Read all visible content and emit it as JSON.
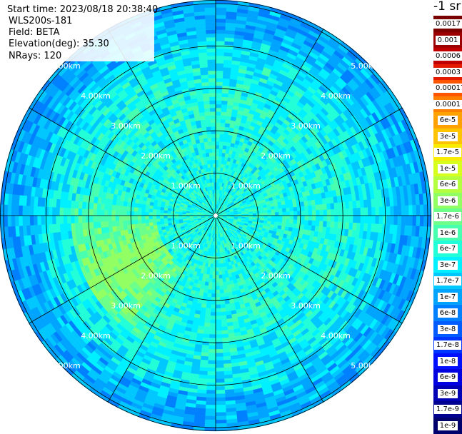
{
  "info": {
    "start_time": "Start time: 2023/08/18 20:38:40",
    "instrument": "WLS200s-181",
    "field": "Field: BETA",
    "elevation": "Elevation(deg): 35.30",
    "nrays": "NRays: 120"
  },
  "colorbar": {
    "unit": "-1 sr",
    "labels": [
      "0.0017",
      "0.001",
      "0.0006",
      "0.0003",
      "0.00017",
      "0.0001",
      "6e-5",
      "3e-5",
      "1.7e-5",
      "1e-5",
      "6e-6",
      "3e-6",
      "1.7e-6",
      "1e-6",
      "6e-7",
      "3e-7",
      "1.7e-7",
      "1e-7",
      "6e-8",
      "3e-8",
      "1.7e-8",
      "1e-8",
      "6e-9",
      "3e-9",
      "1.7e-9",
      "1e-9"
    ],
    "colors": [
      "#7a0000",
      "#9c0000",
      "#c00000",
      "#e41a00",
      "#ff5500",
      "#ff8000",
      "#ffa200",
      "#ffc400",
      "#f8ea00",
      "#d6ff1e",
      "#b4ff40",
      "#92ff62",
      "#6cff8a",
      "#48ffb0",
      "#22ffd8",
      "#00f0ff",
      "#00c8ff",
      "#00a4ff",
      "#0080ff",
      "#005cff",
      "#0034ff",
      "#0010ff",
      "#0000e0",
      "#0000b4",
      "#000090",
      "#00006c"
    ]
  },
  "chart_data": {
    "type": "heatmap",
    "projection": "polar (PPI)",
    "title": "",
    "field": "BETA",
    "rings_km": [
      1,
      2,
      3,
      4,
      5
    ],
    "ring_labels": [
      "1.00km",
      "2.00km",
      "3.00km",
      "4.00km",
      "5.00km"
    ],
    "spokes_deg": [
      0,
      30,
      60,
      90,
      120,
      150,
      180,
      210,
      240,
      270,
      300,
      330
    ],
    "range_km": [
      0,
      5.8
    ],
    "value_range": [
      1e-09,
      0.0017
    ],
    "scale": "log",
    "typical_value": 1.7e-07,
    "peak_value": 3e-06,
    "grid": true
  }
}
